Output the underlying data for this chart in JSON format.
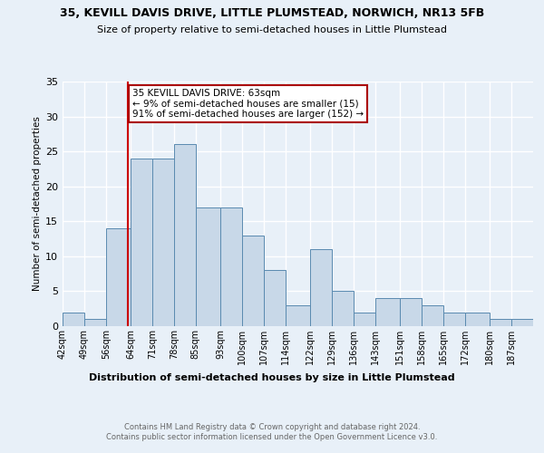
{
  "title_line1": "35, KEVILL DAVIS DRIVE, LITTLE PLUMSTEAD, NORWICH, NR13 5FB",
  "title_line2": "Size of property relative to semi-detached houses in Little Plumstead",
  "xlabel": "Distribution of semi-detached houses by size in Little Plumstead",
  "ylabel": "Number of semi-detached properties",
  "footnote": "Contains HM Land Registry data © Crown copyright and database right 2024.\nContains public sector information licensed under the Open Government Licence v3.0.",
  "bin_labels": [
    "42sqm",
    "49sqm",
    "56sqm",
    "64sqm",
    "71sqm",
    "78sqm",
    "85sqm",
    "93sqm",
    "100sqm",
    "107sqm",
    "114sqm",
    "122sqm",
    "129sqm",
    "136sqm",
    "143sqm",
    "151sqm",
    "158sqm",
    "165sqm",
    "172sqm",
    "180sqm",
    "187sqm"
  ],
  "bar_heights": [
    2,
    1,
    14,
    24,
    24,
    26,
    17,
    17,
    13,
    8,
    3,
    11,
    5,
    2,
    4,
    4,
    3,
    2,
    2,
    1,
    1
  ],
  "bar_color": "#c8d8e8",
  "bar_edge_color": "#5a8ab0",
  "property_line_x": 63,
  "annotation_text": "35 KEVILL DAVIS DRIVE: 63sqm\n← 9% of semi-detached houses are smaller (15)\n91% of semi-detached houses are larger (152) →",
  "annotation_box_color": "#ffffff",
  "annotation_box_edge": "#aa0000",
  "vline_color": "#cc0000",
  "ylim": [
    0,
    35
  ],
  "yticks": [
    0,
    5,
    10,
    15,
    20,
    25,
    30,
    35
  ],
  "background_color": "#e8f0f8",
  "plot_bg_color": "#e8f0f8",
  "grid_color": "#ffffff",
  "bin_edges": [
    42,
    49,
    56,
    64,
    71,
    78,
    85,
    93,
    100,
    107,
    114,
    122,
    129,
    136,
    143,
    151,
    158,
    165,
    172,
    180,
    187,
    194
  ]
}
